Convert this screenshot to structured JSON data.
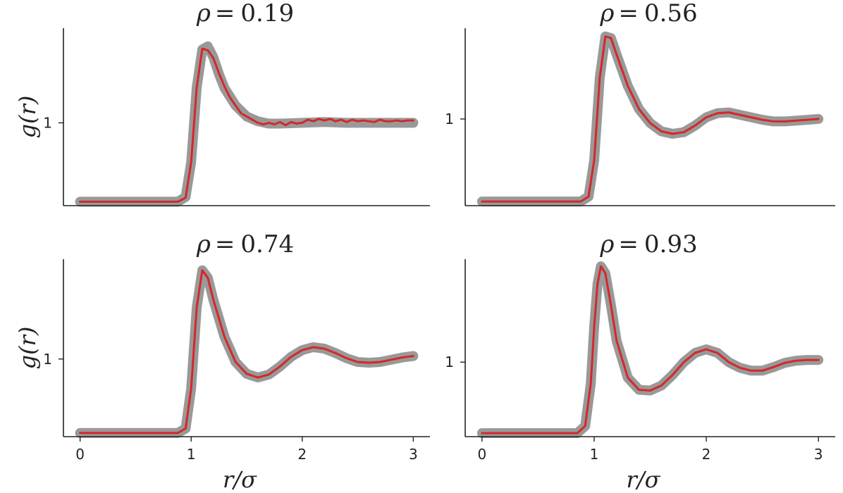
{
  "colors": {
    "reference_line": "#999999",
    "simulation_line": "#d62728",
    "axes": "#222222"
  },
  "chart_data": [
    {
      "type": "line",
      "title": "ρ = 0.19",
      "title_symbol": "ρ",
      "title_value": "0.19",
      "ylabel": "g(r)",
      "xlabel": "",
      "xlim": [
        -0.15,
        3.15
      ],
      "ylim": [
        -0.05,
        2.2
      ],
      "xticks": [],
      "yticks": [
        1
      ],
      "series": [
        {
          "style": "reference",
          "x": [
            0,
            0.88,
            0.95,
            1.0,
            1.05,
            1.1,
            1.15,
            1.2,
            1.25,
            1.3,
            1.4,
            1.5,
            1.6,
            1.7,
            1.8,
            2.0,
            2.2,
            2.4,
            2.6,
            2.8,
            3.0
          ],
          "y": [
            0,
            0,
            0.06,
            0.5,
            1.45,
            1.93,
            1.97,
            1.83,
            1.62,
            1.44,
            1.22,
            1.08,
            1.02,
            0.99,
            0.99,
            1.0,
            1.01,
            1.0,
            1.0,
            1.0,
            1.0
          ]
        },
        {
          "style": "simulation",
          "x": [
            0,
            0.88,
            0.95,
            1.0,
            1.05,
            1.1,
            1.15,
            1.2,
            1.25,
            1.3,
            1.35,
            1.4,
            1.45,
            1.5,
            1.55,
            1.6,
            1.65,
            1.7,
            1.75,
            1.8,
            1.85,
            1.9,
            1.95,
            2.0,
            2.05,
            2.1,
            2.15,
            2.2,
            2.25,
            2.3,
            2.35,
            2.4,
            2.45,
            2.5,
            2.55,
            2.6,
            2.65,
            2.7,
            2.75,
            2.8,
            2.85,
            2.9,
            2.95,
            3.0
          ],
          "y": [
            0,
            0,
            0.05,
            0.5,
            1.45,
            1.94,
            1.92,
            1.82,
            1.63,
            1.46,
            1.32,
            1.22,
            1.12,
            1.08,
            1.04,
            1.0,
            0.98,
            1.0,
            0.98,
            1.01,
            0.97,
            1.01,
            0.99,
            1.0,
            1.04,
            1.02,
            1.05,
            1.03,
            1.05,
            1.02,
            1.04,
            1.01,
            1.04,
            1.02,
            1.03,
            1.02,
            1.01,
            1.04,
            1.02,
            1.02,
            1.03,
            1.02,
            1.03,
            1.03
          ]
        }
      ]
    },
    {
      "type": "line",
      "title": "ρ = 0.56",
      "title_symbol": "ρ",
      "title_value": "0.56",
      "ylabel": "",
      "xlabel": "",
      "xlim": [
        -0.15,
        3.15
      ],
      "ylim": [
        -0.05,
        2.1
      ],
      "xticks": [],
      "yticks": [
        1
      ],
      "series": [
        {
          "style": "reference",
          "x": [
            0,
            0.88,
            0.95,
            1.0,
            1.05,
            1.1,
            1.15,
            1.2,
            1.3,
            1.4,
            1.5,
            1.6,
            1.7,
            1.8,
            1.9,
            2.0,
            2.1,
            2.2,
            2.3,
            2.4,
            2.5,
            2.6,
            2.7,
            2.8,
            2.9,
            3.0
          ],
          "y": [
            0,
            0,
            0.06,
            0.5,
            1.5,
            2.0,
            1.98,
            1.78,
            1.4,
            1.12,
            0.95,
            0.85,
            0.82,
            0.84,
            0.92,
            1.02,
            1.07,
            1.08,
            1.05,
            1.02,
            0.99,
            0.97,
            0.97,
            0.98,
            0.99,
            1.0
          ]
        },
        {
          "style": "simulation",
          "x": [
            0,
            0.88,
            0.95,
            1.0,
            1.05,
            1.1,
            1.15,
            1.2,
            1.3,
            1.4,
            1.5,
            1.6,
            1.7,
            1.8,
            1.9,
            2.0,
            2.1,
            2.2,
            2.3,
            2.4,
            2.5,
            2.6,
            2.7,
            2.8,
            2.9,
            3.0
          ],
          "y": [
            0,
            0,
            0.06,
            0.5,
            1.5,
            2.0,
            1.98,
            1.78,
            1.4,
            1.12,
            0.95,
            0.85,
            0.82,
            0.84,
            0.92,
            1.02,
            1.07,
            1.08,
            1.05,
            1.02,
            0.99,
            0.97,
            0.97,
            0.98,
            0.99,
            1.0
          ]
        }
      ]
    },
    {
      "type": "line",
      "title": "ρ = 0.74",
      "title_symbol": "ρ",
      "title_value": "0.74",
      "ylabel": "g(r)",
      "xlabel": "r/σ",
      "xlim": [
        -0.15,
        3.15
      ],
      "ylim": [
        -0.05,
        2.35
      ],
      "xticks": [
        0,
        1,
        2,
        3
      ],
      "yticks": [
        1
      ],
      "series": [
        {
          "style": "reference",
          "x": [
            0,
            0.88,
            0.95,
            1.0,
            1.05,
            1.1,
            1.15,
            1.2,
            1.3,
            1.4,
            1.5,
            1.6,
            1.7,
            1.8,
            1.9,
            2.0,
            2.1,
            2.2,
            2.3,
            2.4,
            2.5,
            2.6,
            2.7,
            2.8,
            2.9,
            3.0
          ],
          "y": [
            0,
            0,
            0.06,
            0.6,
            1.7,
            2.2,
            2.1,
            1.8,
            1.3,
            0.96,
            0.8,
            0.75,
            0.79,
            0.9,
            1.03,
            1.12,
            1.16,
            1.14,
            1.08,
            1.01,
            0.96,
            0.95,
            0.96,
            0.99,
            1.02,
            1.04
          ]
        },
        {
          "style": "simulation",
          "x": [
            0,
            0.88,
            0.95,
            1.0,
            1.05,
            1.1,
            1.15,
            1.2,
            1.3,
            1.4,
            1.5,
            1.6,
            1.7,
            1.8,
            1.9,
            2.0,
            2.1,
            2.2,
            2.3,
            2.4,
            2.5,
            2.6,
            2.7,
            2.8,
            2.9,
            3.0
          ],
          "y": [
            0,
            0,
            0.06,
            0.6,
            1.7,
            2.2,
            2.1,
            1.8,
            1.3,
            0.96,
            0.8,
            0.75,
            0.79,
            0.9,
            1.03,
            1.12,
            1.16,
            1.14,
            1.08,
            1.01,
            0.96,
            0.95,
            0.96,
            0.99,
            1.02,
            1.04
          ]
        }
      ]
    },
    {
      "type": "line",
      "title": "ρ = 0.93",
      "title_symbol": "ρ",
      "title_value": "0.93",
      "ylabel": "",
      "xlabel": "r/σ",
      "xlim": [
        -0.15,
        3.15
      ],
      "ylim": [
        -0.05,
        2.45
      ],
      "xticks": [
        0,
        1,
        2,
        3
      ],
      "yticks": [
        1
      ],
      "series": [
        {
          "style": "reference",
          "x": [
            0,
            0.85,
            0.92,
            0.97,
            1.0,
            1.03,
            1.06,
            1.1,
            1.15,
            1.2,
            1.3,
            1.4,
            1.5,
            1.6,
            1.7,
            1.8,
            1.9,
            2.0,
            2.1,
            2.2,
            2.3,
            2.4,
            2.5,
            2.6,
            2.7,
            2.8,
            2.9,
            3.0
          ],
          "y": [
            0,
            0,
            0.1,
            0.7,
            1.5,
            2.1,
            2.35,
            2.25,
            1.8,
            1.3,
            0.78,
            0.61,
            0.6,
            0.67,
            0.82,
            1.0,
            1.13,
            1.18,
            1.13,
            1.0,
            0.92,
            0.88,
            0.88,
            0.93,
            0.99,
            1.02,
            1.03,
            1.03
          ]
        },
        {
          "style": "simulation",
          "x": [
            0,
            0.85,
            0.92,
            0.97,
            1.0,
            1.03,
            1.06,
            1.1,
            1.15,
            1.2,
            1.3,
            1.4,
            1.5,
            1.6,
            1.7,
            1.8,
            1.9,
            2.0,
            2.1,
            2.2,
            2.3,
            2.4,
            2.5,
            2.6,
            2.7,
            2.8,
            2.9,
            3.0
          ],
          "y": [
            0,
            0,
            0.1,
            0.7,
            1.5,
            2.1,
            2.35,
            2.25,
            1.8,
            1.3,
            0.78,
            0.61,
            0.6,
            0.67,
            0.82,
            1.0,
            1.13,
            1.18,
            1.13,
            1.0,
            0.92,
            0.88,
            0.88,
            0.93,
            0.99,
            1.02,
            1.03,
            1.03
          ]
        }
      ]
    }
  ]
}
